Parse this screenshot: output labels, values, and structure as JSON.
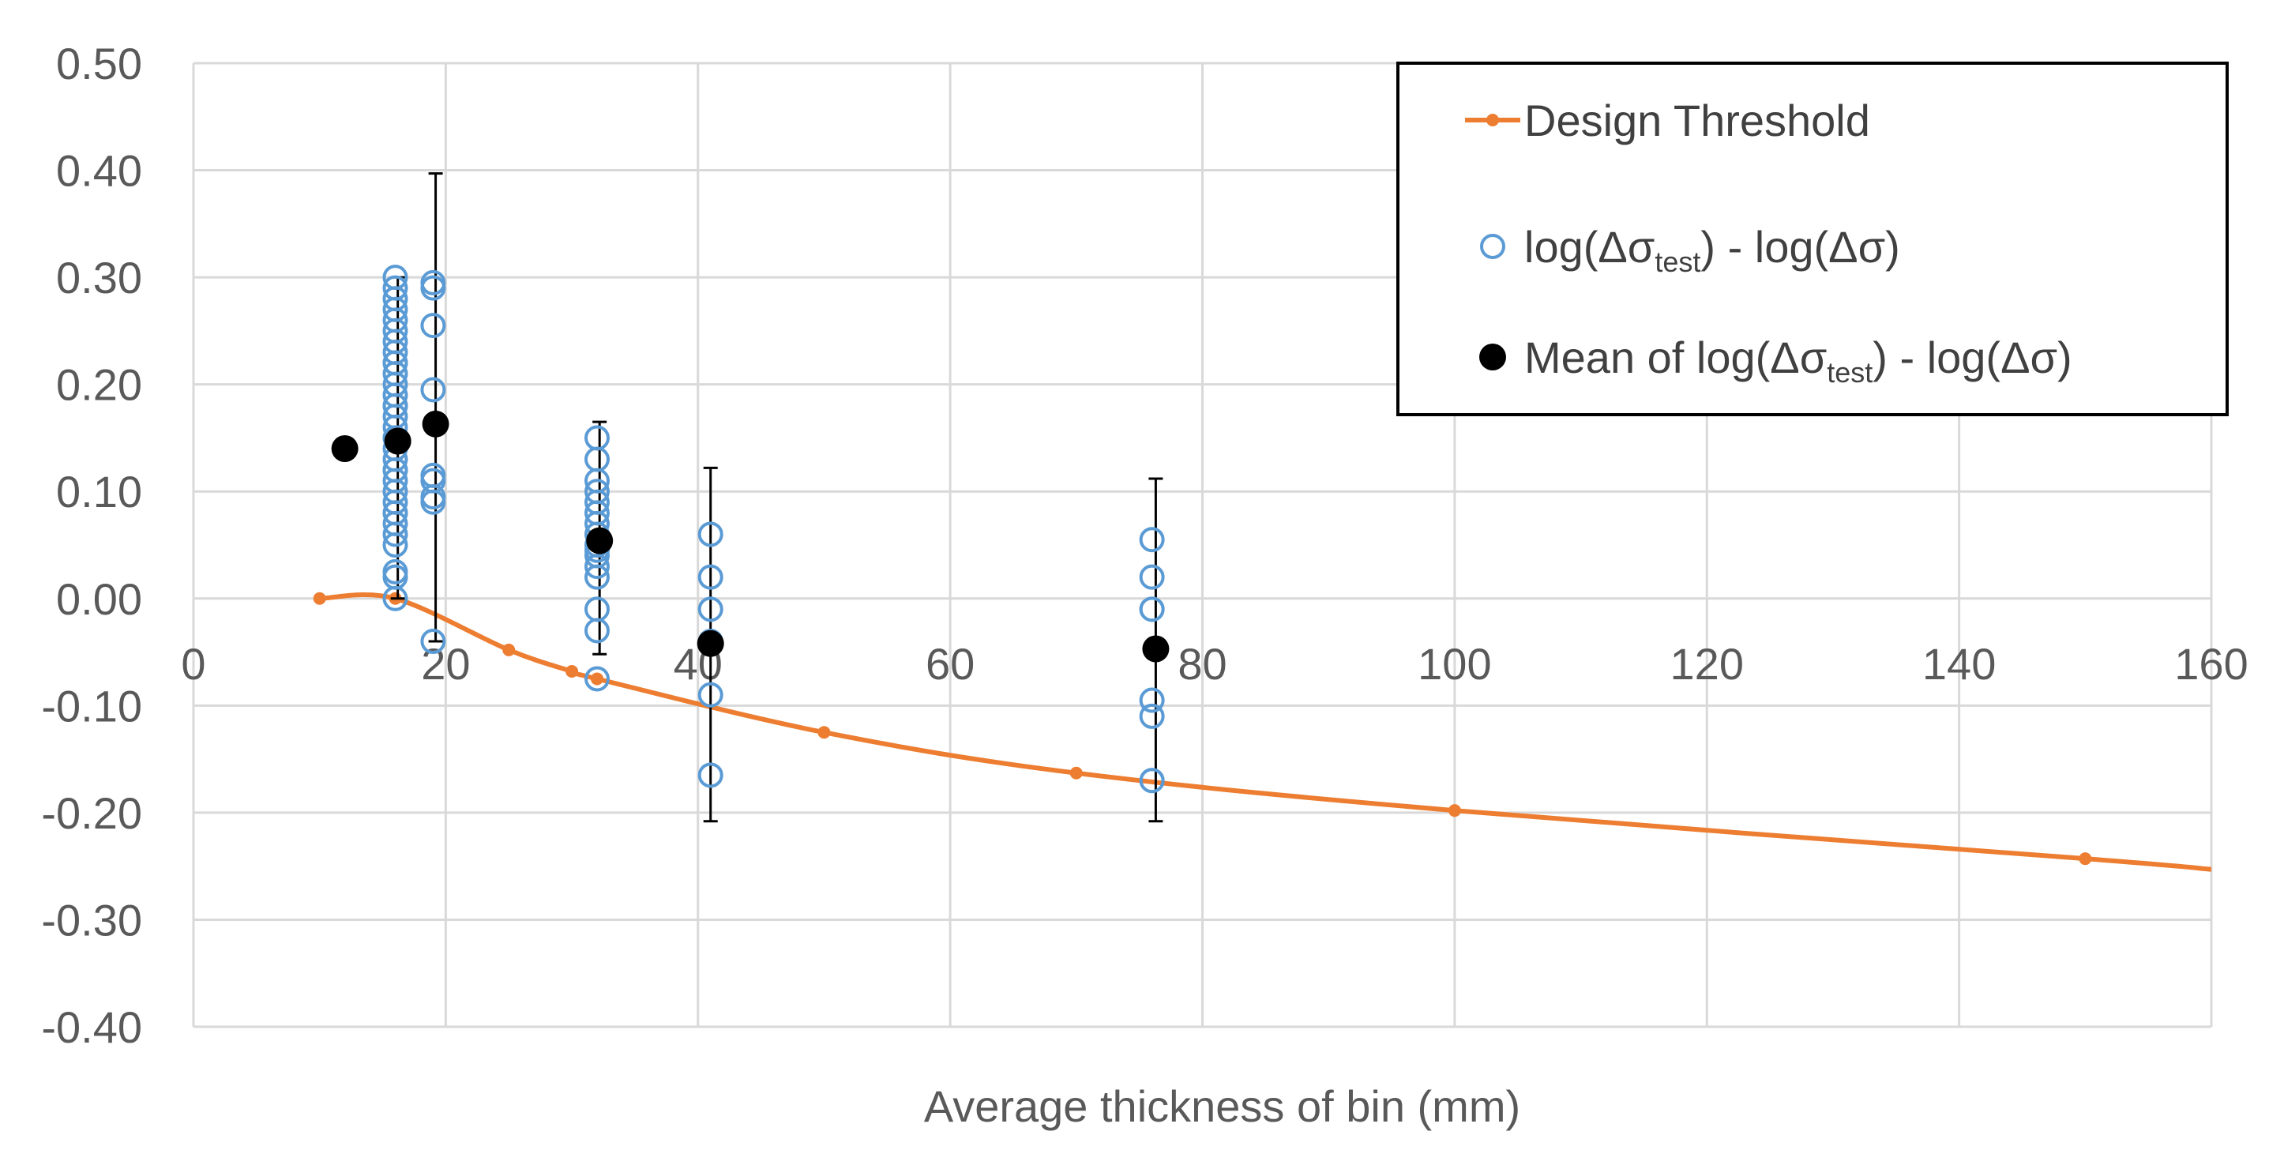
{
  "chart_data": {
    "type": "scatter",
    "xlabel": "Average thickness of bin (mm)",
    "ylabel": "",
    "xlim": [
      0,
      160
    ],
    "ylim": [
      -0.4,
      0.5
    ],
    "grid": true,
    "legend_position": "top-right",
    "x_ticks": [
      0,
      20,
      40,
      60,
      80,
      100,
      120,
      140,
      160
    ],
    "x_tick_labels": [
      "0",
      "20",
      "40",
      "60",
      "80",
      "100",
      "120",
      "140",
      "160"
    ],
    "y_ticks": [
      0.5,
      0.4,
      0.3,
      0.2,
      0.1,
      0.0,
      -0.1,
      -0.2,
      -0.3,
      -0.4
    ],
    "y_tick_labels": [
      "0.50",
      "0.40",
      "0.30",
      "0.20",
      "0.10",
      "0.00",
      "-0.10",
      "-0.20",
      "-0.30",
      "-0.40"
    ],
    "colors": {
      "design": "#ED7D31",
      "test": "#5B9BD5",
      "mean": "#000000",
      "grid": "#D9D9D9",
      "tick_text": "#595959"
    },
    "series": [
      {
        "name": "Design Threshold",
        "legend": {
          "base": "Design Threshold"
        },
        "kind": "line",
        "x": [
          10,
          16,
          25,
          30,
          32,
          50,
          70,
          100,
          150,
          160
        ],
        "y": [
          0.0,
          0.0,
          -0.048,
          -0.068,
          -0.075,
          -0.125,
          -0.163,
          -0.198,
          -0.243,
          -0.253
        ],
        "marker_x": [
          10,
          16,
          25,
          30,
          32,
          50,
          70,
          100,
          150
        ],
        "marker_y": [
          0.0,
          0.0,
          -0.048,
          -0.068,
          -0.075,
          -0.125,
          -0.163,
          -0.198,
          -0.243
        ]
      },
      {
        "name": "log(Δσtest) - log(Δσ)",
        "legend": {
          "base": "log(Δσ",
          "sub": "test",
          "rest": ") - log(Δσ)"
        },
        "kind": "scatter",
        "x": [
          12,
          12,
          16,
          16,
          16,
          16,
          16,
          16,
          16,
          16,
          16,
          16,
          16,
          16,
          16,
          16,
          16,
          16,
          16,
          16,
          16,
          16,
          16,
          16,
          16,
          16,
          16,
          16,
          16,
          16,
          16,
          16,
          16,
          16,
          16,
          16,
          19,
          19,
          19,
          19,
          19,
          19,
          19,
          19,
          19,
          32,
          32,
          32,
          32,
          32,
          32,
          32,
          32,
          32,
          32,
          32,
          32,
          32,
          32,
          32,
          32,
          41,
          41,
          41,
          41,
          41,
          41,
          76,
          76,
          76,
          76,
          76,
          76,
          76,
          76
        ],
        "y": [
          0.14,
          0.14,
          0.3,
          0.29,
          0.28,
          0.27,
          0.26,
          0.25,
          0.24,
          0.23,
          0.22,
          0.21,
          0.2,
          0.19,
          0.18,
          0.17,
          0.16,
          0.15,
          0.14,
          0.13,
          0.12,
          0.11,
          0.1,
          0.09,
          0.08,
          0.07,
          0.06,
          0.05,
          0.025,
          0.02,
          0.0,
          0.15,
          0.12,
          0.08,
          0.18,
          0.22,
          0.295,
          0.29,
          0.255,
          0.195,
          0.115,
          0.11,
          0.095,
          -0.04,
          0.09,
          0.15,
          0.13,
          0.11,
          0.1,
          0.09,
          0.08,
          0.07,
          0.06,
          0.05,
          0.04,
          0.03,
          0.02,
          -0.01,
          -0.03,
          -0.075,
          0.045,
          0.06,
          0.02,
          -0.01,
          -0.09,
          -0.165,
          -0.04,
          0.055,
          0.02,
          -0.01,
          -0.01,
          -0.095,
          -0.11,
          -0.17,
          -0.17
        ]
      },
      {
        "name": "Mean of log(Δσtest) - log(Δσ)",
        "legend": {
          "base": "Mean of log(Δσ",
          "sub": "test",
          "rest": ") - log(Δσ)"
        },
        "kind": "scatter",
        "x": [
          12,
          16.2,
          19.2,
          32.2,
          41,
          76.3
        ],
        "y": [
          0.14,
          0.147,
          0.163,
          0.054,
          -0.042,
          -0.047
        ],
        "error_upper": [
          null,
          0.3,
          0.397,
          0.165,
          0.122,
          0.112
        ],
        "error_lower": [
          null,
          0.0,
          -0.04,
          -0.052,
          -0.208,
          -0.208
        ]
      }
    ]
  }
}
